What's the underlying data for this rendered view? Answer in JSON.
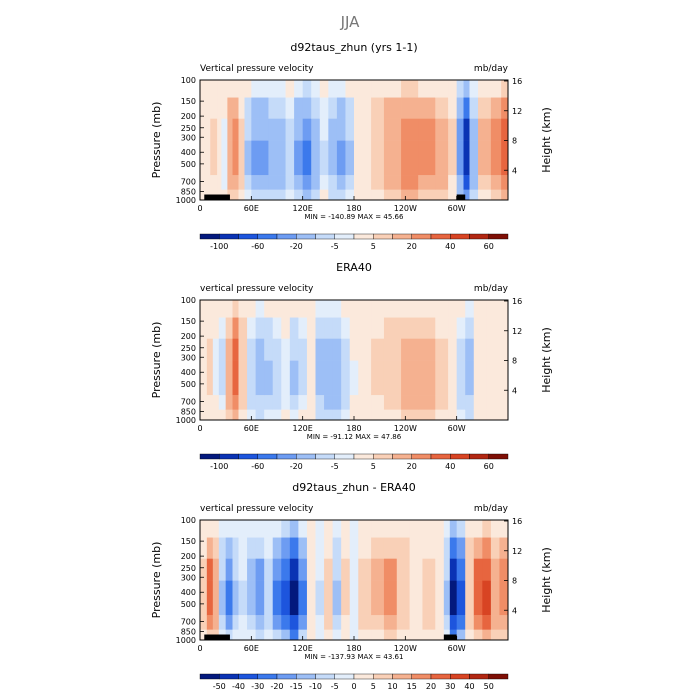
{
  "figure_title": "JJA",
  "colors": {
    "scale": [
      "#03197d",
      "#0a33b4",
      "#1d55dd",
      "#3b79ec",
      "#6d9cf2",
      "#9dbff6",
      "#c5dbf9",
      "#e3eefb",
      "#fbe9dc",
      "#f9d0b7",
      "#f5b190",
      "#f08d66",
      "#e7653f",
      "#d84423",
      "#b22712",
      "#7e0f05"
    ]
  },
  "chart_data": [
    {
      "type": "heatmap",
      "title": "d92taus_zhun (yrs 1-1)",
      "left_label": "Vertical pressure velocity",
      "right_label": "mb/day",
      "xlabel": "",
      "ylabel": "Pressure (mb)",
      "ylabel_right": "Height (km)",
      "x_ticks": [
        "0",
        "60E",
        "120E",
        "180",
        "120W",
        "60W"
      ],
      "x_tick_values": [
        0,
        60,
        120,
        180,
        240,
        300
      ],
      "xlim": [
        0,
        360
      ],
      "y_ticks": [
        "100",
        "150",
        "200",
        "250",
        "300",
        "400",
        "500",
        "700",
        "850",
        "1000"
      ],
      "y_tick_values": [
        100,
        150,
        200,
        250,
        300,
        400,
        500,
        700,
        850,
        1000
      ],
      "ylim": [
        1000,
        100
      ],
      "right_ticks": [
        "16",
        "12",
        "8",
        "4"
      ],
      "right_tick_values": [
        16,
        12,
        8,
        4
      ],
      "minmax_text": "MIN = -140.89   MAX =  45.66",
      "colorbar_labels": [
        "-100",
        "-60",
        "-20",
        "-5",
        "5",
        "20",
        "40",
        "60"
      ],
      "terrain": [
        [
          5,
          35
        ],
        [
          300,
          310
        ]
      ],
      "columns": [
        {
          "lon": 0,
          "v": 4
        },
        {
          "lon": 5,
          "v": -3
        },
        {
          "lon": 12,
          "v": 6
        },
        {
          "lon": 20,
          "v": -2
        },
        {
          "lon": 25,
          "v": -8
        },
        {
          "lon": 32,
          "v": 20
        },
        {
          "lon": 38,
          "v": 25
        },
        {
          "lon": 45,
          "v": 8
        },
        {
          "lon": 52,
          "v": -20
        },
        {
          "lon": 60,
          "v": -40
        },
        {
          "lon": 70,
          "v": -45
        },
        {
          "lon": 80,
          "v": -35
        },
        {
          "lon": 90,
          "v": -30
        },
        {
          "lon": 100,
          "v": -15
        },
        {
          "lon": 110,
          "v": -45
        },
        {
          "lon": 120,
          "v": -60
        },
        {
          "lon": 130,
          "v": -30
        },
        {
          "lon": 140,
          "v": -10
        },
        {
          "lon": 150,
          "v": -25
        },
        {
          "lon": 160,
          "v": -40
        },
        {
          "lon": 170,
          "v": -20
        },
        {
          "lon": 180,
          "v": -3
        },
        {
          "lon": 190,
          "v": 4
        },
        {
          "lon": 200,
          "v": 10
        },
        {
          "lon": 215,
          "v": 20
        },
        {
          "lon": 235,
          "v": 30
        },
        {
          "lon": 255,
          "v": 25
        },
        {
          "lon": 275,
          "v": 18
        },
        {
          "lon": 290,
          "v": 6
        },
        {
          "lon": 300,
          "v": -50
        },
        {
          "lon": 308,
          "v": -120
        },
        {
          "lon": 315,
          "v": -30
        },
        {
          "lon": 325,
          "v": 12
        },
        {
          "lon": 340,
          "v": 25
        },
        {
          "lon": 352,
          "v": 40
        }
      ]
    },
    {
      "type": "heatmap",
      "title": "ERA40",
      "left_label": "vertical pressure velocity",
      "right_label": "mb/day",
      "xlabel": "",
      "ylabel": "Pressure (mb)",
      "ylabel_right": "Height (km)",
      "x_ticks": [
        "0",
        "60E",
        "120E",
        "180",
        "120W",
        "60W"
      ],
      "x_tick_values": [
        0,
        60,
        120,
        180,
        240,
        300
      ],
      "xlim": [
        0,
        360
      ],
      "y_ticks": [
        "100",
        "150",
        "200",
        "250",
        "300",
        "400",
        "500",
        "700",
        "850",
        "1000"
      ],
      "y_tick_values": [
        100,
        150,
        200,
        250,
        300,
        400,
        500,
        700,
        850,
        1000
      ],
      "ylim": [
        1000,
        100
      ],
      "right_ticks": [
        "16",
        "12",
        "8",
        "4"
      ],
      "right_tick_values": [
        16,
        12,
        8,
        4
      ],
      "minmax_text": "MIN = -91.12   MAX =  47.86",
      "colorbar_labels": [
        "-100",
        "-60",
        "-20",
        "-5",
        "5",
        "20",
        "40",
        "60"
      ],
      "terrain": [],
      "columns": [
        {
          "lon": 0,
          "v": 3
        },
        {
          "lon": 8,
          "v": 6
        },
        {
          "lon": 15,
          "v": -6
        },
        {
          "lon": 22,
          "v": -12
        },
        {
          "lon": 30,
          "v": 15
        },
        {
          "lon": 38,
          "v": 40
        },
        {
          "lon": 45,
          "v": 10
        },
        {
          "lon": 55,
          "v": -15
        },
        {
          "lon": 65,
          "v": -25
        },
        {
          "lon": 75,
          "v": -22
        },
        {
          "lon": 85,
          "v": -15
        },
        {
          "lon": 95,
          "v": -8
        },
        {
          "lon": 105,
          "v": -20
        },
        {
          "lon": 115,
          "v": -12
        },
        {
          "lon": 125,
          "v": -4
        },
        {
          "lon": 135,
          "v": -25
        },
        {
          "lon": 145,
          "v": -35
        },
        {
          "lon": 155,
          "v": -30
        },
        {
          "lon": 165,
          "v": -15
        },
        {
          "lon": 175,
          "v": -5
        },
        {
          "lon": 185,
          "v": -2
        },
        {
          "lon": 200,
          "v": 6
        },
        {
          "lon": 215,
          "v": 10
        },
        {
          "lon": 235,
          "v": 18
        },
        {
          "lon": 255,
          "v": 15
        },
        {
          "lon": 275,
          "v": 8
        },
        {
          "lon": 290,
          "v": -3
        },
        {
          "lon": 300,
          "v": -15
        },
        {
          "lon": 310,
          "v": -25
        },
        {
          "lon": 320,
          "v": -4
        },
        {
          "lon": 335,
          "v": 5
        },
        {
          "lon": 350,
          "v": 3
        }
      ]
    },
    {
      "type": "heatmap",
      "title": "d92taus_zhun - ERA40",
      "left_label": "vertical pressure velocity",
      "right_label": "mb/day",
      "xlabel": "",
      "ylabel": "Pressure (mb)",
      "ylabel_right": "Height (km)",
      "x_ticks": [
        "0",
        "60E",
        "120E",
        "180",
        "120W",
        "60W"
      ],
      "x_tick_values": [
        0,
        60,
        120,
        180,
        240,
        300
      ],
      "xlim": [
        0,
        360
      ],
      "y_ticks": [
        "100",
        "150",
        "200",
        "250",
        "300",
        "400",
        "500",
        "700",
        "850",
        "1000"
      ],
      "y_tick_values": [
        100,
        150,
        200,
        250,
        300,
        400,
        500,
        700,
        850,
        1000
      ],
      "ylim": [
        1000,
        100
      ],
      "right_ticks": [
        "16",
        "12",
        "8",
        "4"
      ],
      "right_tick_values": [
        16,
        12,
        8,
        4
      ],
      "minmax_text": "MIN = -137.93   MAX =  43.61",
      "colorbar_labels": [
        "-50",
        "-40",
        "-30",
        "-20",
        "-15",
        "-10",
        "-5",
        "0",
        "5",
        "10",
        "15",
        "20",
        "30",
        "40",
        "50"
      ],
      "terrain": [
        [
          5,
          35
        ],
        [
          285,
          300
        ]
      ],
      "columns": [
        {
          "lon": 0,
          "v": 8
        },
        {
          "lon": 8,
          "v": 25
        },
        {
          "lon": 15,
          "v": 15
        },
        {
          "lon": 22,
          "v": -10
        },
        {
          "lon": 30,
          "v": -20
        },
        {
          "lon": 38,
          "v": -10
        },
        {
          "lon": 45,
          "v": -5
        },
        {
          "lon": 55,
          "v": -12
        },
        {
          "lon": 65,
          "v": -18
        },
        {
          "lon": 75,
          "v": -8
        },
        {
          "lon": 85,
          "v": -20
        },
        {
          "lon": 95,
          "v": -30
        },
        {
          "lon": 105,
          "v": -50
        },
        {
          "lon": 115,
          "v": -20
        },
        {
          "lon": 125,
          "v": 5
        },
        {
          "lon": 135,
          "v": -5
        },
        {
          "lon": 145,
          "v": 8
        },
        {
          "lon": 155,
          "v": -10
        },
        {
          "lon": 165,
          "v": 6
        },
        {
          "lon": 175,
          "v": -3
        },
        {
          "lon": 185,
          "v": 8
        },
        {
          "lon": 200,
          "v": 12
        },
        {
          "lon": 215,
          "v": 18
        },
        {
          "lon": 230,
          "v": 10
        },
        {
          "lon": 245,
          "v": 5
        },
        {
          "lon": 260,
          "v": 8
        },
        {
          "lon": 275,
          "v": 5
        },
        {
          "lon": 285,
          "v": -10
        },
        {
          "lon": 292,
          "v": -50
        },
        {
          "lon": 300,
          "v": -30
        },
        {
          "lon": 310,
          "v": 10
        },
        {
          "lon": 320,
          "v": 25
        },
        {
          "lon": 330,
          "v": 35
        },
        {
          "lon": 340,
          "v": 15
        },
        {
          "lon": 350,
          "v": 20
        }
      ]
    }
  ]
}
